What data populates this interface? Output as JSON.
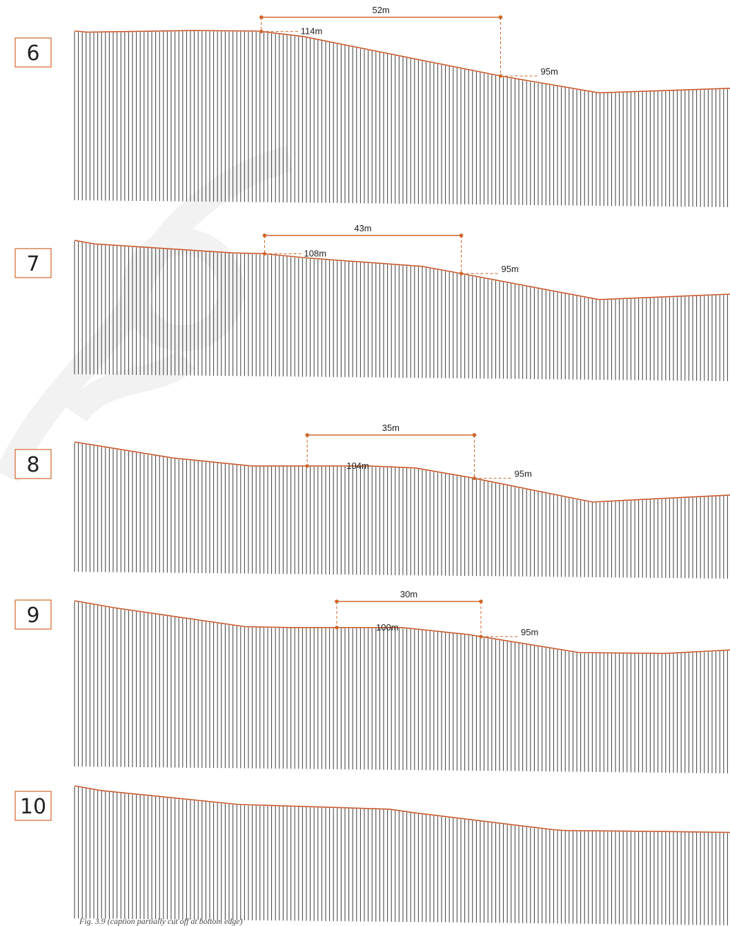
{
  "colors": {
    "terrain_line": "#c8572a",
    "annotation": "#d0652a",
    "hatch": "#3a3a3a",
    "watermark": "#f2f2f2"
  },
  "caption": "Fig. 3.9 (caption partially cut off at bottom edge)",
  "profiles": [
    {
      "number": "6",
      "width_label": "52m",
      "upper_elev_label": "114m",
      "lower_elev_label": "95m",
      "terrain": [
        [
          0,
          0
        ],
        [
          0.02,
          0.01
        ],
        [
          0.18,
          -0.005
        ],
        [
          0.28,
          0
        ],
        [
          0.35,
          0.05
        ],
        [
          0.65,
          0.4
        ],
        [
          0.8,
          0.55
        ],
        [
          1.0,
          0.51
        ]
      ]
    },
    {
      "number": "7",
      "width_label": "43m",
      "upper_elev_label": "108m",
      "lower_elev_label": "95m",
      "terrain": [
        [
          0,
          0
        ],
        [
          0.03,
          0.04
        ],
        [
          0.24,
          0.14
        ],
        [
          0.29,
          0.15
        ],
        [
          0.36,
          0.2
        ],
        [
          0.53,
          0.29
        ],
        [
          0.59,
          0.37
        ],
        [
          0.8,
          0.66
        ],
        [
          1.0,
          0.6
        ]
      ]
    },
    {
      "number": "8",
      "width_label": "35m",
      "upper_elev_label": "104m",
      "lower_elev_label": "95m",
      "terrain": [
        [
          0,
          0
        ],
        [
          0.15,
          0.16
        ],
        [
          0.27,
          0.24
        ],
        [
          0.45,
          0.24
        ],
        [
          0.52,
          0.26
        ],
        [
          0.6,
          0.35
        ],
        [
          0.79,
          0.6
        ],
        [
          1.0,
          0.53
        ]
      ]
    },
    {
      "number": "9",
      "width_label": "30m",
      "upper_elev_label": "100m",
      "lower_elev_label": "95m",
      "terrain": [
        [
          0,
          0
        ],
        [
          0.06,
          0.08
        ],
        [
          0.26,
          0.3
        ],
        [
          0.33,
          0.31
        ],
        [
          0.5,
          0.31
        ],
        [
          0.6,
          0.39
        ],
        [
          0.77,
          0.6
        ],
        [
          0.9,
          0.61
        ],
        [
          1.0,
          0.57
        ]
      ]
    },
    {
      "number": "10",
      "width_label": "",
      "upper_elev_label": "",
      "lower_elev_label": "",
      "terrain": [
        [
          0,
          0
        ],
        [
          0.04,
          0.05
        ],
        [
          0.25,
          0.2
        ],
        [
          0.48,
          0.25
        ],
        [
          0.52,
          0.29
        ],
        [
          0.73,
          0.47
        ],
        [
          0.75,
          0.48
        ],
        [
          0.9,
          0.49
        ],
        [
          1.0,
          0.5
        ]
      ]
    }
  ]
}
